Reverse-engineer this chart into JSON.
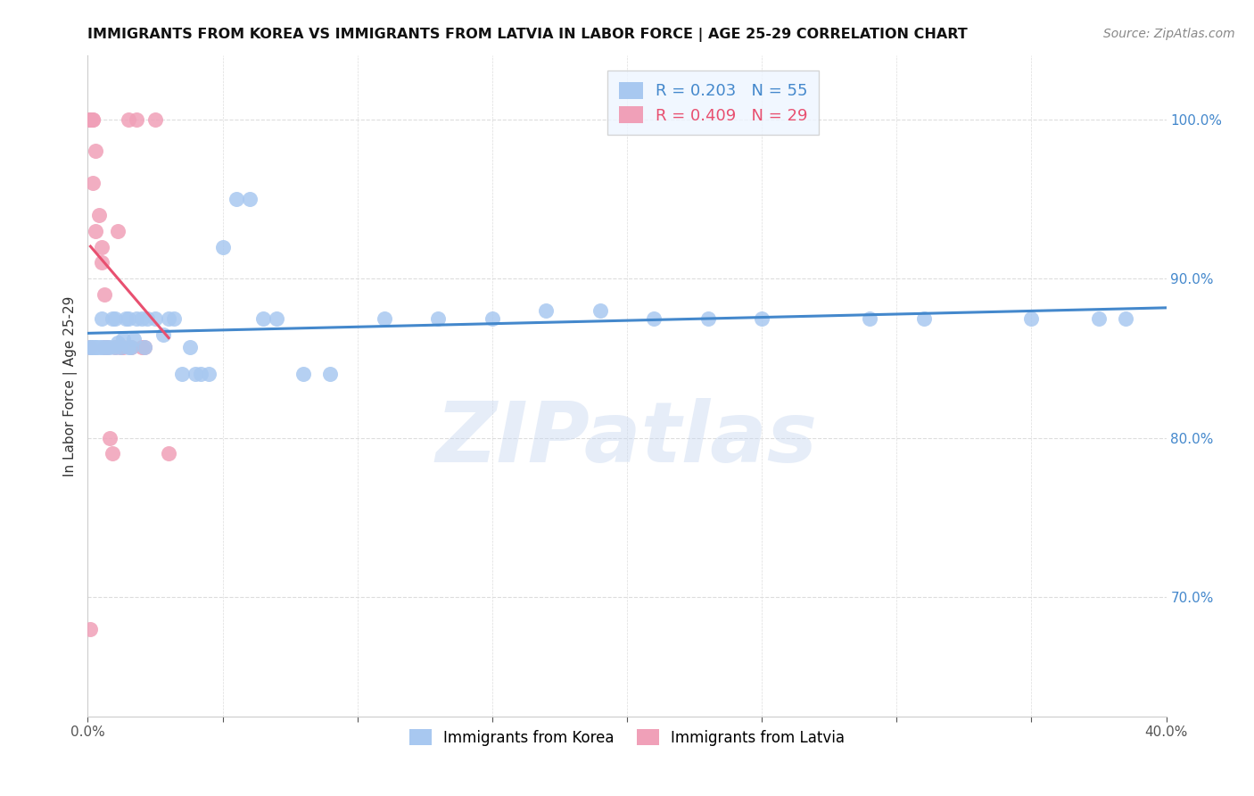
{
  "title": "IMMIGRANTS FROM KOREA VS IMMIGRANTS FROM LATVIA IN LABOR FORCE | AGE 25-29 CORRELATION CHART",
  "source": "Source: ZipAtlas.com",
  "ylabel": "In Labor Force | Age 25-29",
  "xlim": [
    0.0,
    0.4
  ],
  "ylim": [
    0.625,
    1.04
  ],
  "xticks": [
    0.0,
    0.05,
    0.1,
    0.15,
    0.2,
    0.25,
    0.3,
    0.35,
    0.4
  ],
  "xticklabels": [
    "0.0%",
    "",
    "",
    "",
    "",
    "",
    "",
    "",
    "40.0%"
  ],
  "yticks_right": [
    0.7,
    0.8,
    0.9,
    1.0
  ],
  "ytick_labels_right": [
    "70.0%",
    "80.0%",
    "90.0%",
    "100.0%"
  ],
  "korea_R": 0.203,
  "korea_N": 55,
  "latvia_R": 0.409,
  "latvia_N": 29,
  "korea_color": "#A8C8F0",
  "latvia_color": "#F0A0B8",
  "korea_line_color": "#4488CC",
  "latvia_line_color": "#E85070",
  "legend_box_color": "#EEF5FF",
  "korea_x": [
    0.001,
    0.001,
    0.002,
    0.003,
    0.003,
    0.004,
    0.005,
    0.005,
    0.006,
    0.007,
    0.008,
    0.009,
    0.01,
    0.01,
    0.011,
    0.012,
    0.013,
    0.014,
    0.015,
    0.015,
    0.016,
    0.017,
    0.018,
    0.02,
    0.021,
    0.022,
    0.025,
    0.028,
    0.03,
    0.032,
    0.035,
    0.038,
    0.04,
    0.042,
    0.045,
    0.05,
    0.055,
    0.06,
    0.065,
    0.07,
    0.08,
    0.09,
    0.11,
    0.13,
    0.15,
    0.17,
    0.19,
    0.21,
    0.23,
    0.25,
    0.29,
    0.31,
    0.35,
    0.375,
    0.385
  ],
  "korea_y": [
    0.857,
    0.857,
    0.857,
    0.857,
    0.857,
    0.857,
    0.875,
    0.857,
    0.857,
    0.857,
    0.857,
    0.875,
    0.857,
    0.875,
    0.86,
    0.857,
    0.862,
    0.875,
    0.857,
    0.875,
    0.857,
    0.862,
    0.875,
    0.875,
    0.857,
    0.875,
    0.875,
    0.865,
    0.875,
    0.875,
    0.84,
    0.857,
    0.84,
    0.84,
    0.84,
    0.92,
    0.95,
    0.95,
    0.875,
    0.875,
    0.84,
    0.84,
    0.875,
    0.875,
    0.875,
    0.88,
    0.88,
    0.875,
    0.875,
    0.875,
    0.875,
    0.875,
    0.875,
    0.875,
    0.875
  ],
  "latvia_x": [
    0.001,
    0.001,
    0.001,
    0.001,
    0.002,
    0.002,
    0.002,
    0.003,
    0.003,
    0.004,
    0.005,
    0.005,
    0.006,
    0.006,
    0.007,
    0.008,
    0.009,
    0.01,
    0.011,
    0.012,
    0.013,
    0.015,
    0.016,
    0.018,
    0.02,
    0.021,
    0.025,
    0.03,
    0.001
  ],
  "latvia_y": [
    1.0,
    1.0,
    1.0,
    0.857,
    1.0,
    1.0,
    0.96,
    0.98,
    0.93,
    0.94,
    0.92,
    0.91,
    0.89,
    0.857,
    0.857,
    0.8,
    0.79,
    0.857,
    0.93,
    0.857,
    0.857,
    1.0,
    0.857,
    1.0,
    0.857,
    0.857,
    1.0,
    0.79,
    0.68
  ],
  "watermark_text": "ZIPatlas",
  "background_color": "#FFFFFF",
  "grid_color": "#DDDDDD",
  "title_fontsize": 11.5,
  "source_fontsize": 10,
  "axis_label_fontsize": 11,
  "tick_fontsize": 11,
  "legend_fontsize": 13
}
